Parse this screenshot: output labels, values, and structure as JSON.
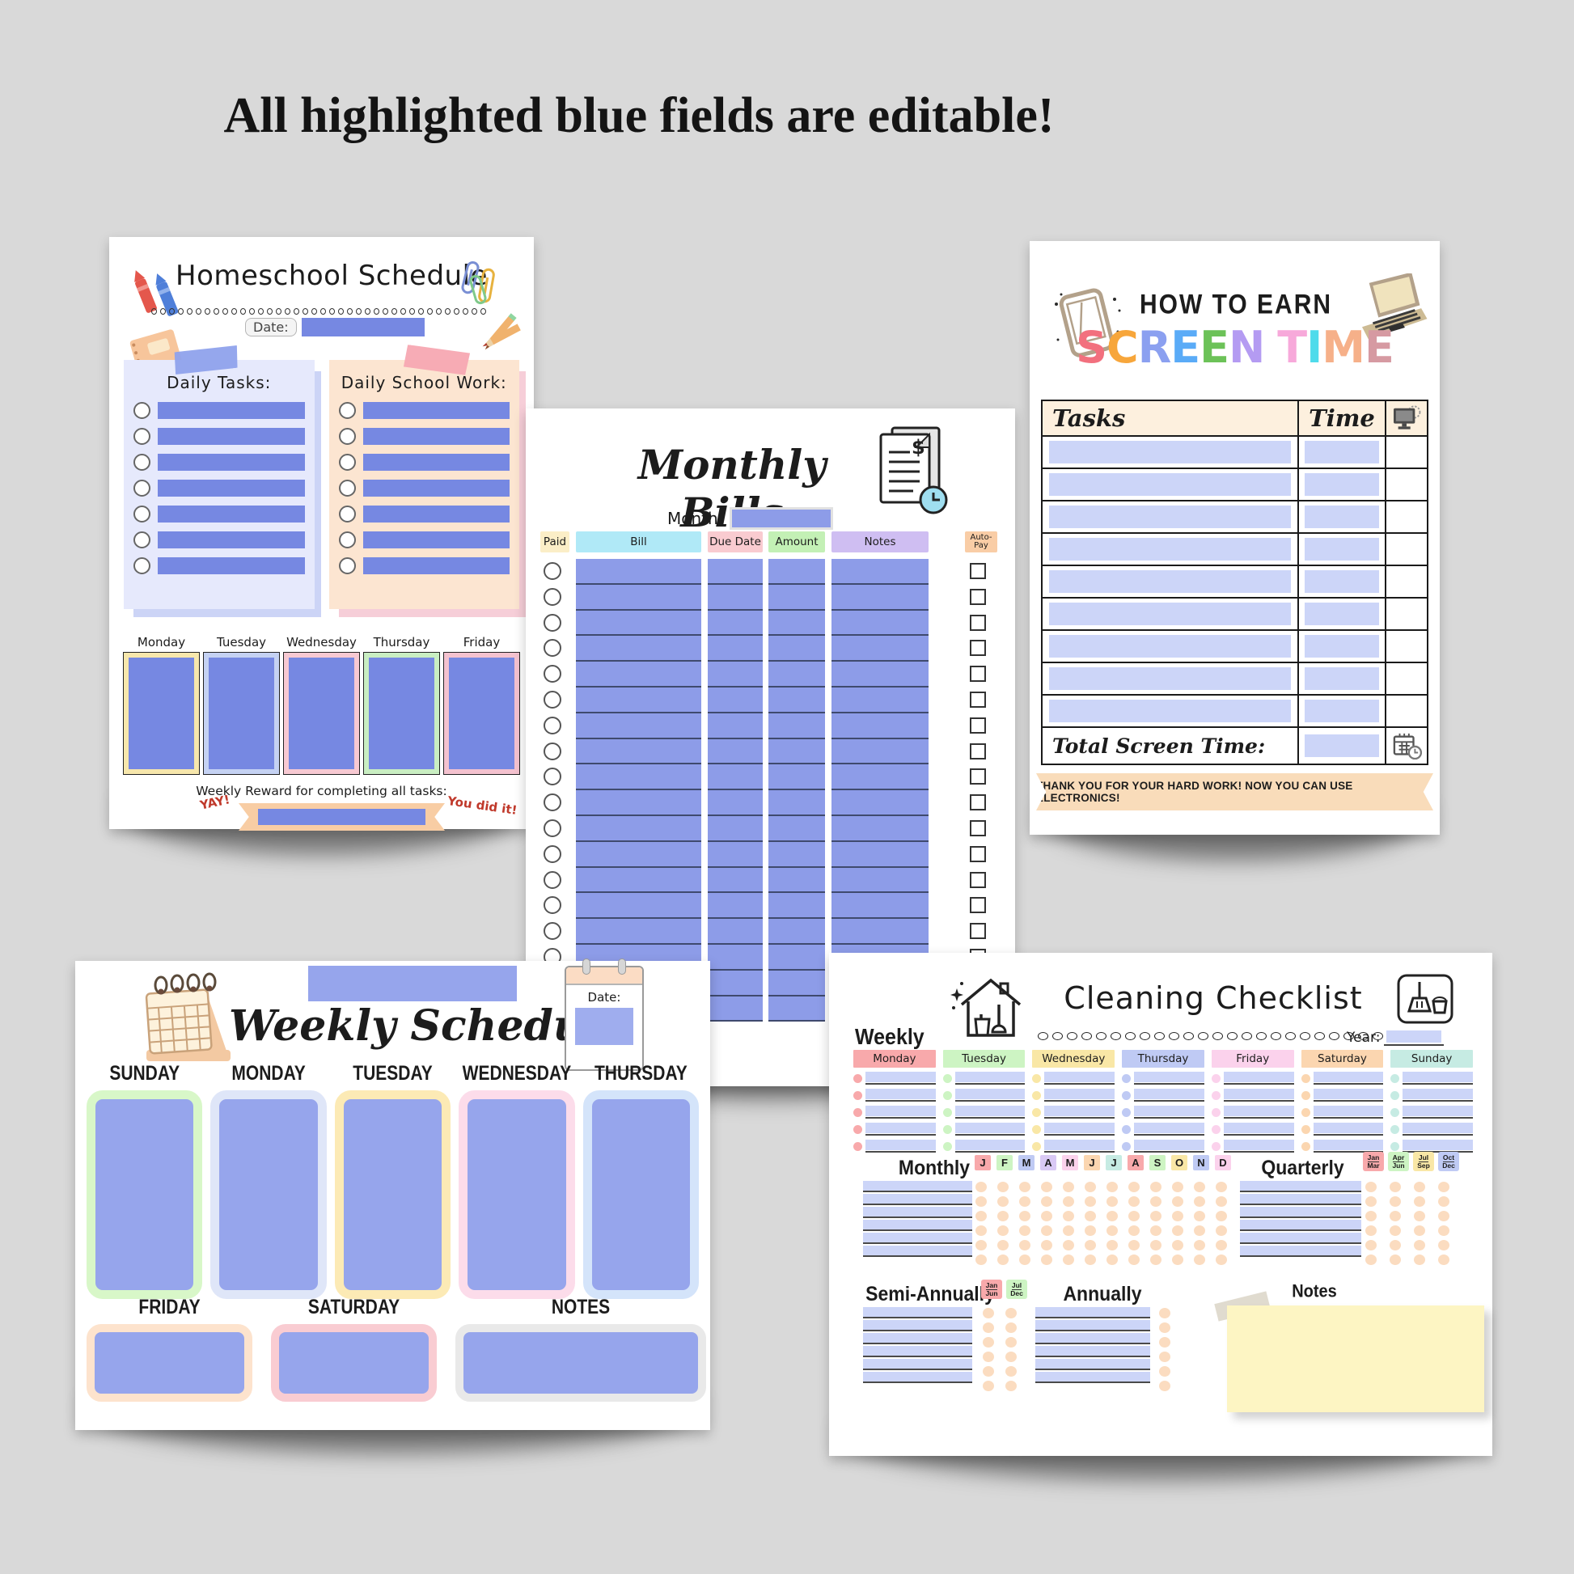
{
  "headline": "All highlighted blue fields are editable!",
  "colors": {
    "field_blue": "#7688e2",
    "field_blue_med": "#8d9ce8",
    "field_blue_light": "#ccd5f8",
    "weekly_box_blue": "#96a5ec",
    "panel_lavender": "#e6e9fc",
    "panel_peach": "#fce5d1",
    "tape_blue": "#8fa2ec",
    "tape_pink": "#f7a8b2",
    "ribbon_peach": "#f8cda4",
    "banner_peach": "#f9dcba",
    "sticky_yellow": "#fdf5c3",
    "peach_dot": "#fbdcc0",
    "homeschool_days": [
      "#f7e7ac",
      "#c5d2f3",
      "#f7c9d2",
      "#c9eec2",
      "#f4c2cf"
    ],
    "bills_columns": [
      "#fbeec7",
      "#b0e9f7",
      "#f9cbd0",
      "#c3f0b5",
      "#cfbef2",
      "#f9cda6"
    ],
    "screen_letters": [
      "#f2707e",
      "#f7a63b",
      "#8ba0f0",
      "#5aabf7",
      "#6cc258",
      "#b49bf2",
      "#f7a9da",
      "#4fdbeb",
      "#f6b089",
      "#d69aa2"
    ],
    "weekly_row1": [
      "#d8f7c8",
      "#dfe6f8",
      "#fceab5",
      "#fcdcea",
      "#d4e4fa"
    ],
    "weekly_row2": [
      "#fde3cd",
      "#f9ccd2",
      "#e9e9e9"
    ],
    "cleaning_week": [
      "#f8a9ab",
      "#cdf4c3",
      "#f9e7a6",
      "#bfcaf4",
      "#fbd2ec",
      "#fbd6b0",
      "#c6ebe3"
    ],
    "month_chips": [
      "#f8a9ab",
      "#cdf4c3",
      "#bfcaf4",
      "#d9c9f5",
      "#fbd2ec",
      "#fbd6b0",
      "#c6ebe3",
      "#f8a9ab",
      "#cdf4c3",
      "#f9e7a6",
      "#bfcaf4",
      "#fbd2ec"
    ],
    "quarter_chips": [
      "#f8a9ab",
      "#cdf4c3",
      "#f9e7a6",
      "#bfcaf4"
    ],
    "semi_chips": [
      "#f8a9ab",
      "#cdf4c3"
    ]
  },
  "homeschool": {
    "title": "Homeschool Schedule",
    "date_label": "Date:",
    "tasks_title": "Daily Tasks:",
    "work_title": "Daily School Work:",
    "task_rows": 7,
    "days": [
      "Monday",
      "Tuesday",
      "Wednesday",
      "Thursday",
      "Friday"
    ],
    "reward_label": "Weekly Reward for completing all tasks:",
    "yay": "YAY!",
    "you_did_it": "You did it!"
  },
  "bills": {
    "title": "Monthly Bills",
    "month_label": "Month:",
    "columns": [
      "Paid",
      "Bill",
      "Due Date",
      "Amount",
      "Notes",
      "Auto-Pay"
    ],
    "rows": 18
  },
  "screen_time": {
    "title_top": "HOW TO EARN",
    "title_main": "SCREEN TIME",
    "tasks_header": "Tasks",
    "time_header": "Time",
    "rows": 9,
    "total_label": "Total Screen Time:",
    "banner": "THANK YOU FOR YOUR HARD WORK! NOW YOU CAN USE ELECTRONICS!"
  },
  "weekly": {
    "title": "Weekly Schedule",
    "date_label": "Date:",
    "row1": [
      "SUNDAY",
      "MONDAY",
      "TUESDAY",
      "WEDNESDAY",
      "THURSDAY"
    ],
    "row2": [
      "FRIDAY",
      "SATURDAY",
      "NOTES"
    ]
  },
  "cleaning": {
    "title": "Cleaning Checklist",
    "weekly_label": "Weekly",
    "year_label": "Year:",
    "week_days": [
      "Monday",
      "Tuesday",
      "Wednesday",
      "Thursday",
      "Friday",
      "Saturday",
      "Sunday"
    ],
    "rows_per_day": 5,
    "monthly_label": "Monthly",
    "month_letters": [
      "J",
      "F",
      "M",
      "A",
      "M",
      "J",
      "J",
      "A",
      "S",
      "O",
      "N",
      "D"
    ],
    "quarterly_label": "Quarterly",
    "quarter_chips": [
      [
        "Jan",
        "Mar"
      ],
      [
        "Apr",
        "Jun"
      ],
      [
        "Jul",
        "Sep"
      ],
      [
        "Oct",
        "Dec"
      ]
    ],
    "semi_label": "Semi-Annually",
    "semi_chips": [
      [
        "Jan",
        "Jun"
      ],
      [
        "Jul",
        "Dec"
      ]
    ],
    "annually_label": "Annually",
    "notes_label": "Notes",
    "monthly_rows": 6,
    "quarterly_rows": 6,
    "semi_rows": 6,
    "annual_rows": 6
  }
}
